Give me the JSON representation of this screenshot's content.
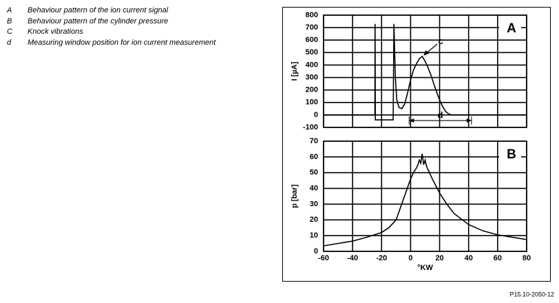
{
  "legend": [
    {
      "key": "A",
      "text": "Behaviour pattern of the ion current signal"
    },
    {
      "key": "B",
      "text": "Behaviour pattern of the cylinder pressure"
    },
    {
      "key": "C",
      "text": "Knock vibrations"
    },
    {
      "key": "d",
      "text": "Measuring window position for ion current measurement"
    }
  ],
  "figure_id": "P15.10-2050-12",
  "chart_data": [
    {
      "type": "line",
      "panel_label": "A",
      "ylabel": "I [µA]",
      "x": [
        -60,
        -24.6,
        -24.5,
        -24.3,
        -12,
        -11.5,
        -10.5,
        -9.5,
        -8,
        -6,
        -4,
        -2,
        0,
        2,
        4,
        6,
        8,
        10,
        12,
        14,
        16,
        18,
        20,
        22,
        24,
        26,
        28,
        80
      ],
      "series": [
        {
          "color": "#000000",
          "values": [
            0,
            0,
            730,
            -40,
            -40,
            730,
            300,
            120,
            60,
            50,
            90,
            180,
            280,
            360,
            410,
            450,
            470,
            430,
            380,
            320,
            250,
            180,
            120,
            70,
            30,
            10,
            0,
            0
          ]
        }
      ],
      "xlim": [
        -60,
        80
      ],
      "ylim": [
        -100,
        800
      ],
      "yticks": [
        -100,
        0,
        100,
        200,
        300,
        400,
        500,
        600,
        700,
        800
      ],
      "grid": true,
      "annotations": [
        {
          "text": "c",
          "x": 8,
          "y": 470
        },
        {
          "text": "d",
          "x": [
            -1,
            42
          ],
          "y": -45
        }
      ]
    },
    {
      "type": "line",
      "panel_label": "B",
      "ylabel": "p [bar]",
      "xlabel": "°KW",
      "x": [
        -60,
        -40,
        -30,
        -20,
        -15,
        -10,
        -5,
        0,
        2,
        4,
        5,
        6,
        7,
        8,
        9,
        10,
        11,
        12,
        15,
        20,
        25,
        30,
        40,
        50,
        60,
        70,
        80
      ],
      "series": [
        {
          "color": "#000000",
          "values": [
            3.5,
            6.5,
            9,
            12,
            15,
            20,
            33,
            46,
            50,
            53,
            55,
            58,
            56,
            62,
            55,
            58,
            54,
            52,
            46,
            37,
            30,
            24,
            17,
            13,
            10.5,
            9,
            7.5
          ]
        }
      ],
      "xlim": [
        -60,
        80
      ],
      "ylim": [
        0,
        70
      ],
      "xticks": [
        -60,
        -40,
        -20,
        0,
        20,
        40,
        60,
        80
      ],
      "yticks": [
        0,
        10,
        20,
        30,
        40,
        50,
        60,
        70
      ],
      "grid": true
    }
  ]
}
